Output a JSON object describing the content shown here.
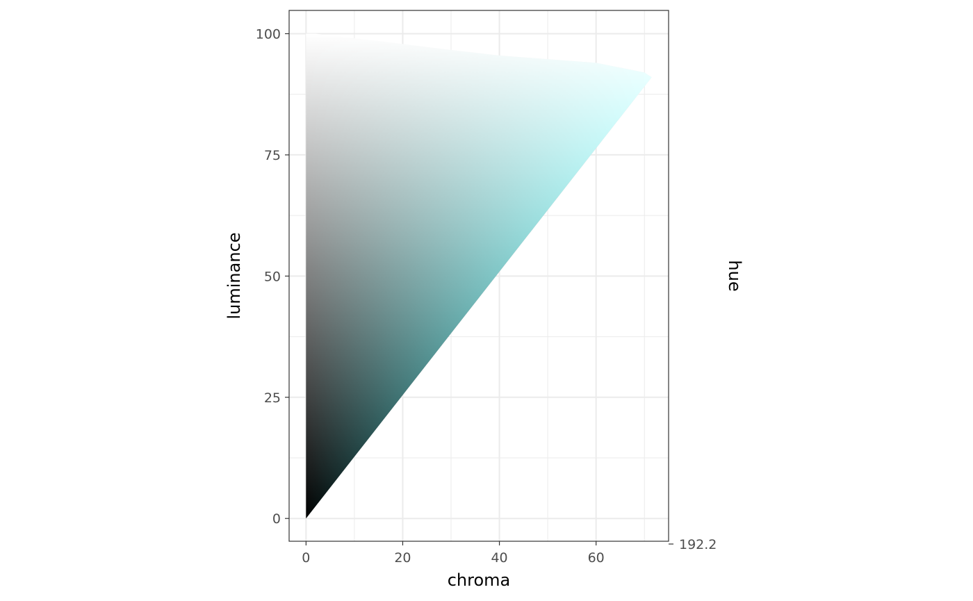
{
  "chart_data": {
    "type": "heatmap",
    "title": "",
    "xlabel": "chroma",
    "ylabel": "luminance",
    "right_label": "hue",
    "hue_tick_label": "192.2",
    "hue_value": 192.2,
    "xlim": [
      -3.5,
      75
    ],
    "ylim": [
      -4.7,
      104.8
    ],
    "x_ticks": [
      0,
      20,
      40,
      60
    ],
    "x_tick_labels": [
      "0",
      "20",
      "40",
      "60"
    ],
    "y_ticks": [
      0,
      25,
      50,
      75,
      100
    ],
    "y_tick_labels": [
      "0",
      "25",
      "50",
      "75",
      "100"
    ],
    "grid": true,
    "boundary": [
      {
        "chroma": 0,
        "luminance": 0
      },
      {
        "chroma": 71.5,
        "luminance": 91
      },
      {
        "chroma": 70,
        "luminance": 92
      },
      {
        "chroma": 60,
        "luminance": 94
      },
      {
        "chroma": 40,
        "luminance": 95.5
      },
      {
        "chroma": 27,
        "luminance": 97
      },
      {
        "chroma": 15,
        "luminance": 98.5
      },
      {
        "chroma": 2,
        "luminance": 100
      },
      {
        "chroma": 0,
        "luminance": 100
      }
    ],
    "colors": {
      "black_point": "#000000",
      "white_point": "#ffffff",
      "max_chroma_point": "#00ffff"
    }
  }
}
